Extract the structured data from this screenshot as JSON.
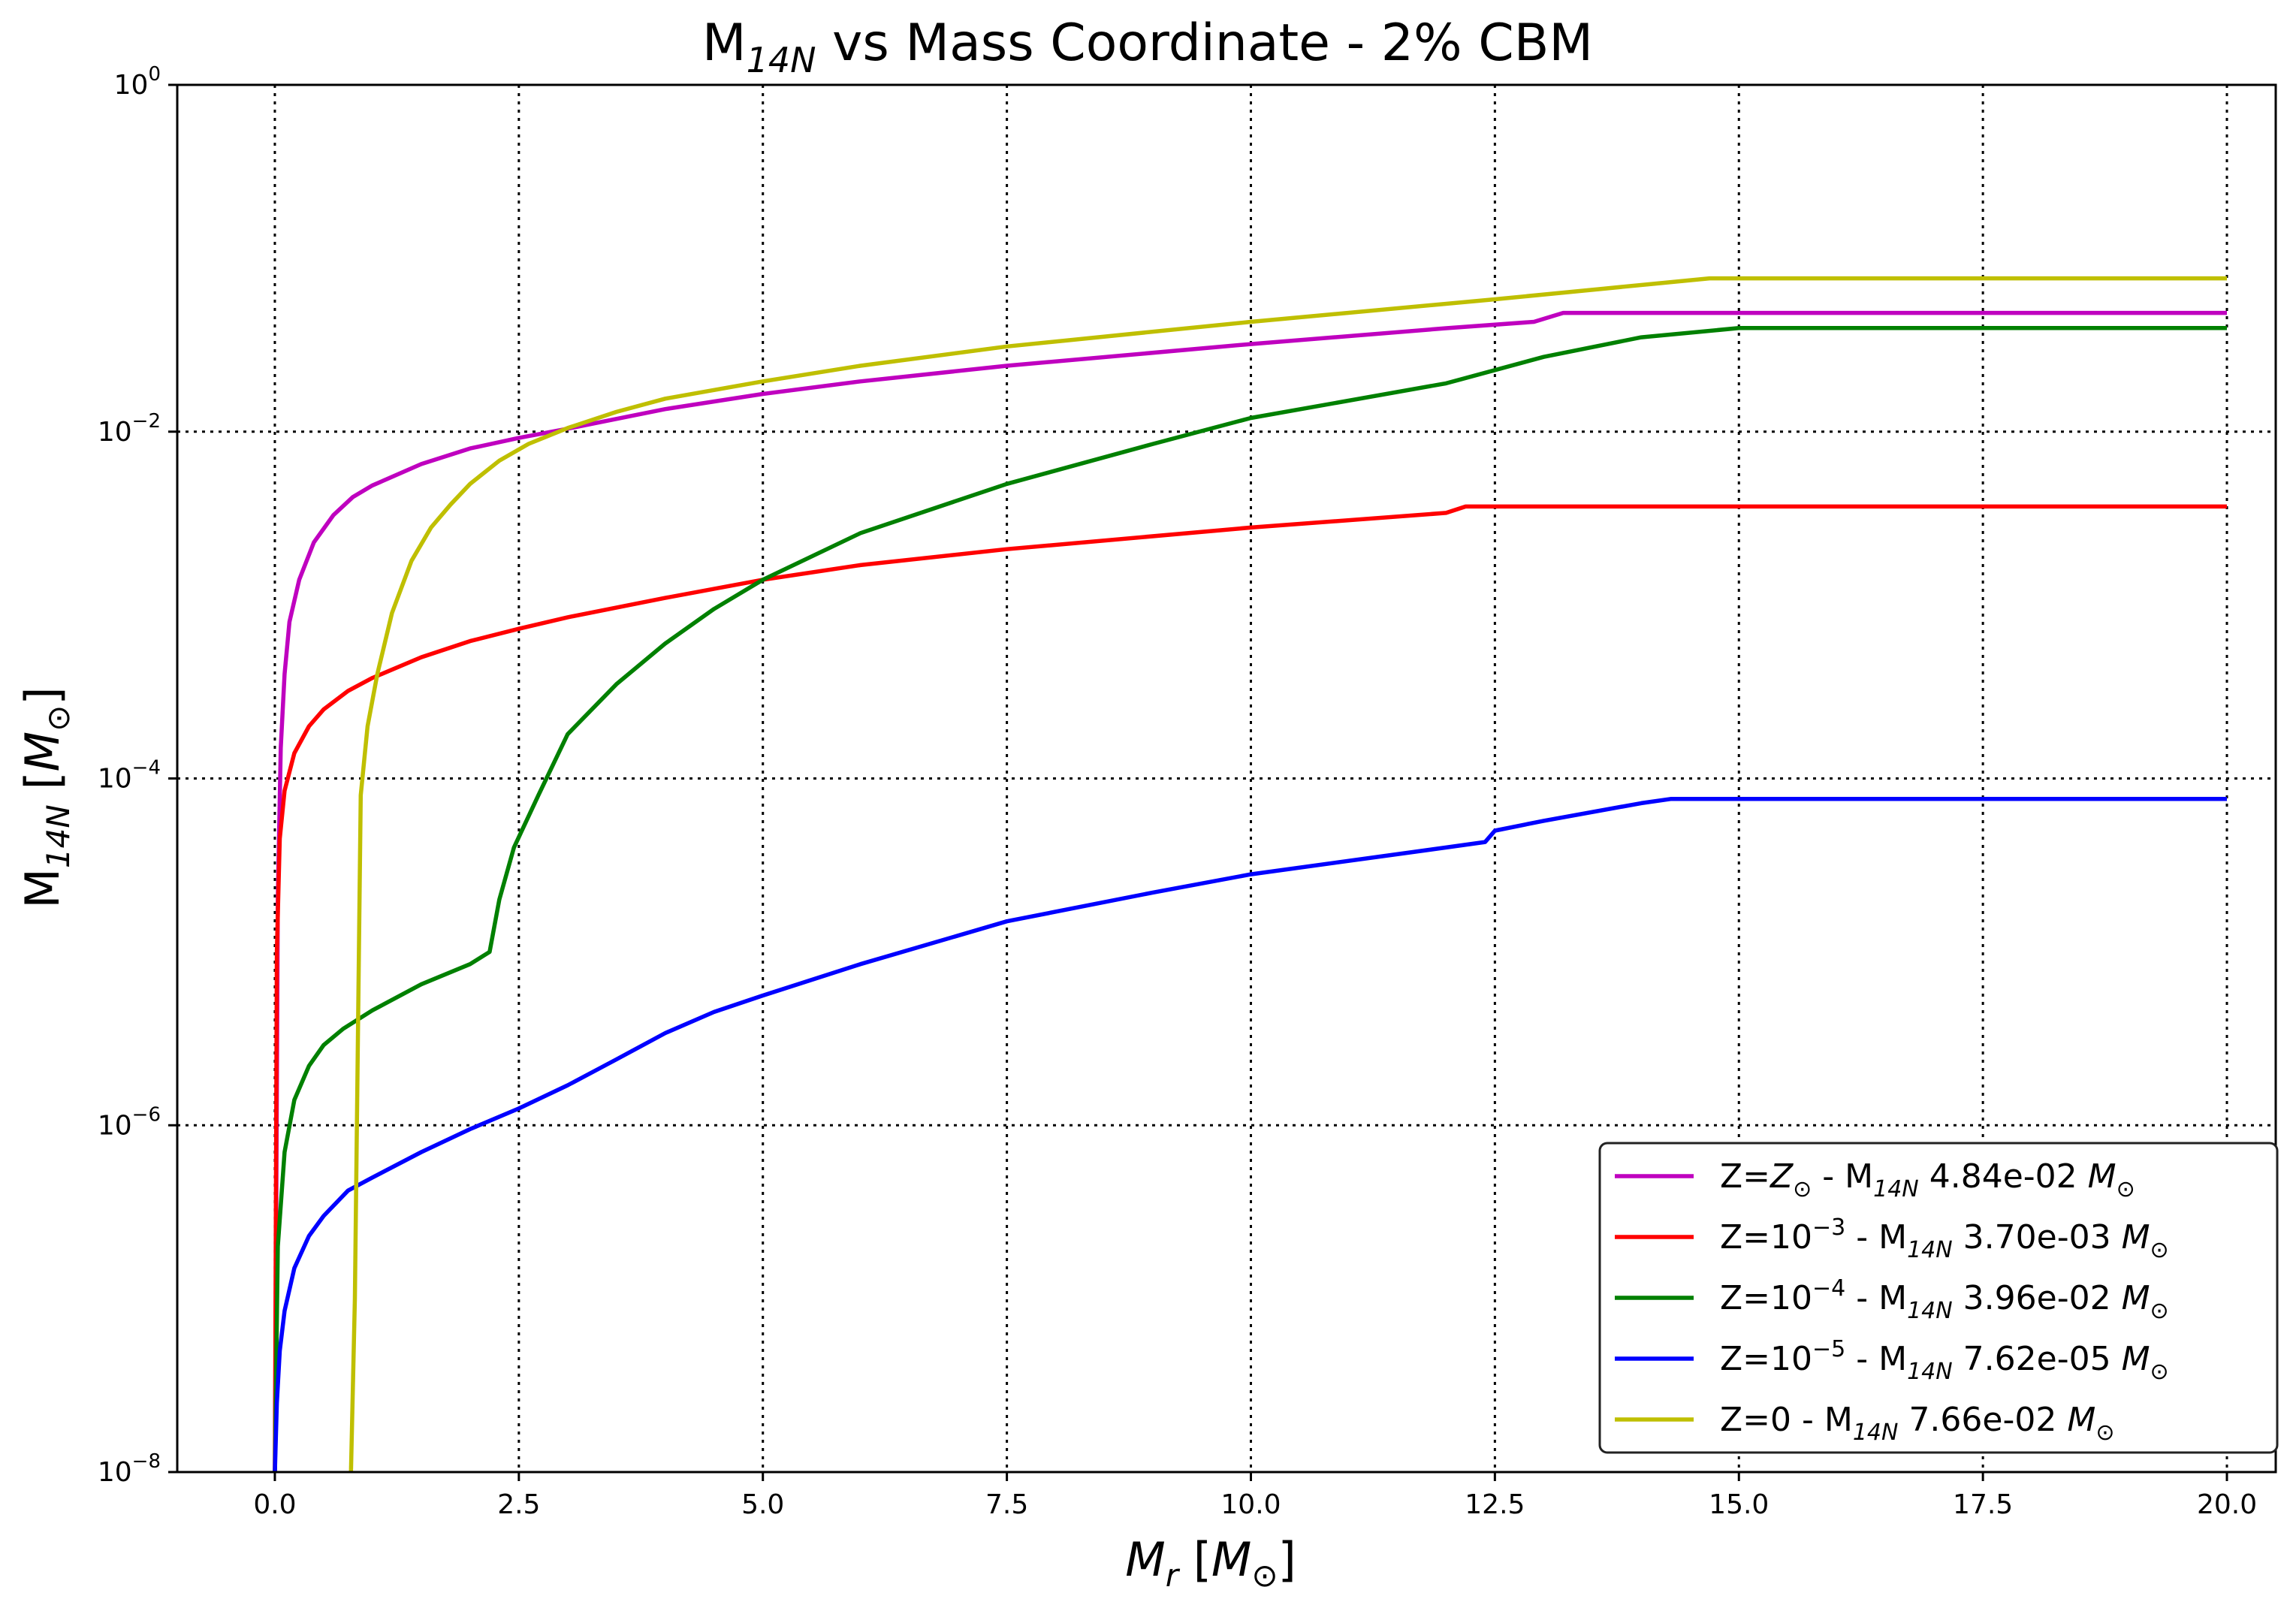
{
  "chart_data": {
    "type": "line",
    "title_parts": [
      "M",
      "14N",
      " vs Mass Coordinate - 2% CBM"
    ],
    "xlabel_parts": [
      "M",
      "r",
      " [",
      "M",
      "⊙",
      "]"
    ],
    "ylabel_parts": [
      "M",
      "14N",
      " [",
      "M",
      "⊙",
      "]"
    ],
    "xlim": [
      -1.0,
      20.5
    ],
    "ylim": [
      1e-08,
      1
    ],
    "yscale": "log",
    "grid": true,
    "legend_placement": "lower-right",
    "x_ticks": [
      {
        "value": 0.0,
        "label": "0.0"
      },
      {
        "value": 2.5,
        "label": "2.5"
      },
      {
        "value": 5.0,
        "label": "5.0"
      },
      {
        "value": 7.5,
        "label": "7.5"
      },
      {
        "value": 10.0,
        "label": "10.0"
      },
      {
        "value": 12.5,
        "label": "12.5"
      },
      {
        "value": 15.0,
        "label": "15.0"
      },
      {
        "value": 17.5,
        "label": "17.5"
      },
      {
        "value": 20.0,
        "label": "20.0"
      }
    ],
    "y_ticks": [
      {
        "value": 1,
        "base": "10",
        "exp": "0"
      },
      {
        "value": 0.01,
        "base": "10",
        "exp": "−2"
      },
      {
        "value": 0.0001,
        "base": "10",
        "exp": "−4"
      },
      {
        "value": 1e-06,
        "base": "10",
        "exp": "−6"
      },
      {
        "value": 1e-08,
        "base": "10",
        "exp": "−8"
      }
    ],
    "series": [
      {
        "color": "#bf00bf",
        "legend": {
          "z_prefix": "Z=",
          "z_main": "Z",
          "z_sub": "⊙",
          "z_sup": "",
          "mid": " - M",
          "mid_sub": "14N",
          "value": " 4.84e-02 ",
          "unit": "M",
          "unit_sub": "⊙"
        },
        "x": [
          0.0,
          0.03,
          0.06,
          0.1,
          0.15,
          0.25,
          0.4,
          0.6,
          0.8,
          1.0,
          1.5,
          2.0,
          2.5,
          3.0,
          4.0,
          5.0,
          6.0,
          7.5,
          10.0,
          12.0,
          12.9,
          13.2,
          15.0,
          17.5,
          20.0
        ],
        "y": [
          1e-08,
          2e-05,
          0.00015,
          0.0004,
          0.0008,
          0.0014,
          0.0023,
          0.0033,
          0.0042,
          0.0049,
          0.0065,
          0.008,
          0.0092,
          0.0104,
          0.0135,
          0.0165,
          0.0195,
          0.024,
          0.032,
          0.0395,
          0.043,
          0.0484,
          0.0484,
          0.0484,
          0.0484
        ]
      },
      {
        "color": "#ff0000",
        "legend": {
          "z_prefix": "Z=",
          "z_main": "10",
          "z_sub": "",
          "z_sup": "−3",
          "mid": " - M",
          "mid_sub": "14N",
          "value": " 3.70e-03 ",
          "unit": "M",
          "unit_sub": "⊙"
        },
        "x": [
          0.0,
          0.02,
          0.05,
          0.1,
          0.2,
          0.35,
          0.5,
          0.75,
          1.0,
          1.5,
          2.0,
          2.5,
          3.0,
          4.0,
          5.0,
          6.0,
          7.5,
          10.0,
          12.0,
          12.2,
          15.0,
          17.5,
          20.0
        ],
        "y": [
          1e-08,
          1e-05,
          4.5e-05,
          8.5e-05,
          0.00014,
          0.0002,
          0.00025,
          0.00032,
          0.00038,
          0.0005,
          0.00062,
          0.00073,
          0.00085,
          0.0011,
          0.0014,
          0.0017,
          0.0021,
          0.0028,
          0.0034,
          0.0037,
          0.0037,
          0.0037,
          0.0037
        ]
      },
      {
        "color": "#008000",
        "legend": {
          "z_prefix": "Z=",
          "z_main": "10",
          "z_sub": "",
          "z_sup": "−4",
          "mid": " - M",
          "mid_sub": "14N",
          "value": " 3.96e-02 ",
          "unit": "M",
          "unit_sub": "⊙"
        },
        "x": [
          0.0,
          0.03,
          0.1,
          0.2,
          0.35,
          0.5,
          0.7,
          1.0,
          1.5,
          2.0,
          2.2,
          2.3,
          2.45,
          2.7,
          3.0,
          3.5,
          4.0,
          4.5,
          5.0,
          6.0,
          7.5,
          9.0,
          10.0,
          12.0,
          13.0,
          14.0,
          15.0,
          17.5,
          20.0
        ],
        "y": [
          1e-08,
          2e-07,
          7e-07,
          1.4e-06,
          2.2e-06,
          2.9e-06,
          3.6e-06,
          4.6e-06,
          6.5e-06,
          8.5e-06,
          1e-05,
          2e-05,
          4e-05,
          8e-05,
          0.00018,
          0.00035,
          0.0006,
          0.00095,
          0.0014,
          0.0026,
          0.005,
          0.0085,
          0.012,
          0.019,
          0.027,
          0.035,
          0.0396,
          0.0396,
          0.0396
        ]
      },
      {
        "color": "#0000ff",
        "legend": {
          "z_prefix": "Z=",
          "z_main": "10",
          "z_sub": "",
          "z_sup": "−5",
          "mid": " - M",
          "mid_sub": "14N",
          "value": " 7.62e-05 ",
          "unit": "M",
          "unit_sub": "⊙"
        },
        "x": [
          0.0,
          0.02,
          0.05,
          0.1,
          0.2,
          0.35,
          0.5,
          0.75,
          1.0,
          1.5,
          2.0,
          2.5,
          3.0,
          3.5,
          4.0,
          4.5,
          5.0,
          6.0,
          7.5,
          9.0,
          10.0,
          12.0,
          12.4,
          12.5,
          13.0,
          14.0,
          14.3,
          15.0,
          17.5,
          20.0
        ],
        "y": [
          1e-08,
          2.5e-08,
          5e-08,
          8.5e-08,
          1.5e-07,
          2.3e-07,
          3e-07,
          4.2e-07,
          5e-07,
          7e-07,
          9.5e-07,
          1.25e-06,
          1.7e-06,
          2.4e-06,
          3.4e-06,
          4.5e-06,
          5.6e-06,
          8.5e-06,
          1.5e-05,
          2.2e-05,
          2.8e-05,
          4e-05,
          4.3e-05,
          5e-05,
          5.7e-05,
          7.2e-05,
          7.62e-05,
          7.62e-05,
          7.62e-05,
          7.62e-05
        ]
      },
      {
        "color": "#bfbf00",
        "legend": {
          "z_prefix": "Z=",
          "z_main": "0",
          "z_sub": "",
          "z_sup": "",
          "mid": " - M",
          "mid_sub": "14N",
          "value": " 7.66e-02 ",
          "unit": "M",
          "unit_sub": "⊙"
        },
        "x": [
          0.78,
          0.82,
          0.88,
          0.95,
          1.05,
          1.2,
          1.4,
          1.6,
          1.8,
          2.0,
          2.3,
          2.6,
          3.0,
          3.5,
          4.0,
          5.0,
          6.0,
          7.5,
          10.0,
          12.5,
          14.7,
          15.0,
          17.5,
          20.0
        ],
        "y": [
          1e-08,
          1e-07,
          8e-05,
          0.0002,
          0.0004,
          0.0009,
          0.0018,
          0.0028,
          0.0038,
          0.005,
          0.0068,
          0.0085,
          0.0105,
          0.013,
          0.0155,
          0.0195,
          0.024,
          0.031,
          0.043,
          0.058,
          0.0766,
          0.0766,
          0.0766,
          0.0766
        ]
      }
    ]
  }
}
